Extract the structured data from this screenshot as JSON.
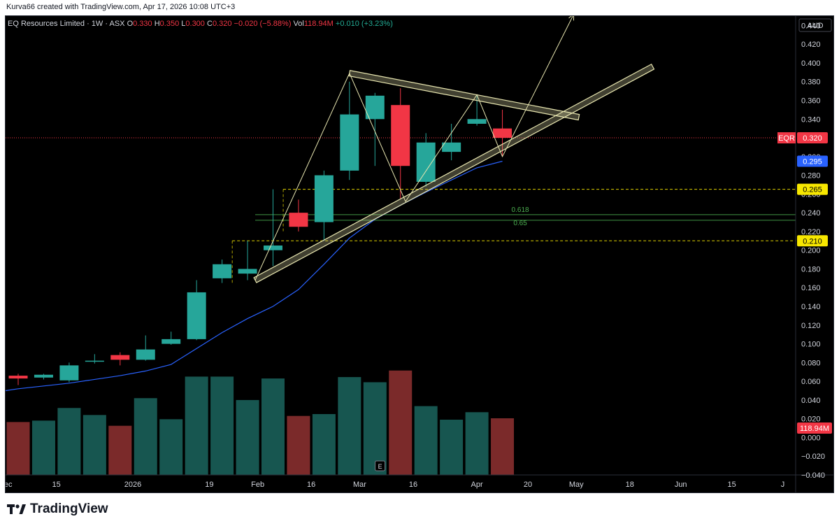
{
  "attribution": "Kurva66 created with TradingView.com, Apr 17, 2026 10:08 UTC+3",
  "legend": {
    "symbol": "EQ Resources Limited · 1W · ASX",
    "o_label": "O",
    "o": "0.330",
    "h_label": "H",
    "h": "0.350",
    "l_label": "L",
    "l": "0.300",
    "c_label": "C",
    "c": "0.320",
    "change": "−0.020 (−5.88%)",
    "vol_label": "Vol",
    "vol": "118.94M",
    "vol_change": "+0.010 (+3.23%)"
  },
  "brand": "TradingView",
  "chart_data": {
    "type": "candlestick",
    "currency": "AUD",
    "ylim": [
      -0.04,
      0.45
    ],
    "y_ticks": [
      0.44,
      0.42,
      0.4,
      0.38,
      0.36,
      0.34,
      0.32,
      0.3,
      0.28,
      0.26,
      0.24,
      0.22,
      0.2,
      0.18,
      0.16,
      0.14,
      0.12,
      0.1,
      0.08,
      0.06,
      0.04,
      0.02,
      0.0,
      -0.02,
      -0.04
    ],
    "x_ticks": [
      {
        "label": "Dec",
        "week": -0.5
      },
      {
        "label": "15",
        "week": 1.5
      },
      {
        "label": "2026",
        "week": 4.5
      },
      {
        "label": "19",
        "week": 7.5
      },
      {
        "label": "Feb",
        "week": 9.4
      },
      {
        "label": "16",
        "week": 11.5
      },
      {
        "label": "Mar",
        "week": 13.4
      },
      {
        "label": "16",
        "week": 15.5
      },
      {
        "label": "Apr",
        "week": 18.0
      },
      {
        "label": "20",
        "week": 20.0
      },
      {
        "label": "May",
        "week": 21.9
      },
      {
        "label": "18",
        "week": 24.0
      },
      {
        "label": "Jun",
        "week": 26.0
      },
      {
        "label": "15",
        "week": 28.0
      },
      {
        "label": "J",
        "week": 30.0
      }
    ],
    "candles": [
      {
        "o": 0.066,
        "h": 0.068,
        "l": 0.056,
        "c": 0.063
      },
      {
        "o": 0.064,
        "h": 0.068,
        "l": 0.062,
        "c": 0.067
      },
      {
        "o": 0.061,
        "h": 0.08,
        "l": 0.059,
        "c": 0.077
      },
      {
        "o": 0.081,
        "h": 0.089,
        "l": 0.079,
        "c": 0.082
      },
      {
        "o": 0.088,
        "h": 0.091,
        "l": 0.077,
        "c": 0.083
      },
      {
        "o": 0.083,
        "h": 0.109,
        "l": 0.082,
        "c": 0.094
      },
      {
        "o": 0.1,
        "h": 0.113,
        "l": 0.099,
        "c": 0.105
      },
      {
        "o": 0.105,
        "h": 0.168,
        "l": 0.104,
        "c": 0.155
      },
      {
        "o": 0.17,
        "h": 0.19,
        "l": 0.165,
        "c": 0.185
      },
      {
        "o": 0.175,
        "h": 0.21,
        "l": 0.168,
        "c": 0.18
      },
      {
        "o": 0.2,
        "h": 0.265,
        "l": 0.183,
        "c": 0.205
      },
      {
        "o": 0.24,
        "h": 0.254,
        "l": 0.22,
        "c": 0.225
      },
      {
        "o": 0.23,
        "h": 0.285,
        "l": 0.21,
        "c": 0.28
      },
      {
        "o": 0.285,
        "h": 0.38,
        "l": 0.275,
        "c": 0.345
      },
      {
        "o": 0.34,
        "h": 0.368,
        "l": 0.29,
        "c": 0.365
      },
      {
        "o": 0.355,
        "h": 0.373,
        "l": 0.255,
        "c": 0.29
      },
      {
        "o": 0.273,
        "h": 0.325,
        "l": 0.268,
        "c": 0.315
      },
      {
        "o": 0.305,
        "h": 0.335,
        "l": 0.296,
        "c": 0.315
      },
      {
        "o": 0.335,
        "h": 0.365,
        "l": 0.333,
        "c": 0.34
      },
      {
        "o": 0.33,
        "h": 0.35,
        "l": 0.3,
        "c": 0.32
      }
    ],
    "volumes": [
      {
        "value": 0.0165,
        "dir": "down"
      },
      {
        "value": 0.018,
        "dir": "up"
      },
      {
        "value": 0.0315,
        "dir": "up"
      },
      {
        "value": 0.024,
        "dir": "up"
      },
      {
        "value": 0.0125,
        "dir": "down"
      },
      {
        "value": 0.042,
        "dir": "up"
      },
      {
        "value": 0.0195,
        "dir": "up"
      },
      {
        "value": 0.065,
        "dir": "up"
      },
      {
        "value": 0.065,
        "dir": "up"
      },
      {
        "value": 0.04,
        "dir": "up"
      },
      {
        "value": 0.063,
        "dir": "up"
      },
      {
        "value": 0.023,
        "dir": "down"
      },
      {
        "value": 0.025,
        "dir": "up"
      },
      {
        "value": 0.0645,
        "dir": "up"
      },
      {
        "value": 0.059,
        "dir": "up"
      },
      {
        "value": 0.0715,
        "dir": "down"
      },
      {
        "value": 0.0335,
        "dir": "up"
      },
      {
        "value": 0.019,
        "dir": "up"
      },
      {
        "value": 0.027,
        "dir": "up"
      },
      {
        "value": 0.0205,
        "dir": "down"
      }
    ],
    "ma": [
      0.052,
      0.055,
      0.058,
      0.062,
      0.066,
      0.071,
      0.078,
      0.095,
      0.112,
      0.127,
      0.14,
      0.158,
      0.185,
      0.213,
      0.233,
      0.248,
      0.262,
      0.275,
      0.288,
      0.295
    ],
    "levels": {
      "last_price": {
        "label": "EQR",
        "value": 0.32,
        "color": "#f23645"
      },
      "ma_value": {
        "value": 0.295,
        "color": "#2962ff"
      },
      "resistance_1": {
        "value": 0.265,
        "color": "#f7e700"
      },
      "resistance_2": {
        "value": 0.21,
        "color": "#f7e700"
      },
      "fib_618": {
        "label": "0.618",
        "value": 0.238
      },
      "fib_65": {
        "label": "0.65",
        "value": 0.232
      },
      "volume_badge": {
        "label": "118.94M",
        "value": 0.01
      }
    },
    "drawings": {
      "wedge_upper": [
        {
          "week": 13.0,
          "price": 0.389
        },
        {
          "week": 22.0,
          "price": 0.342
        }
      ],
      "wedge_lower": [
        {
          "week": 9.3,
          "price": 0.168
        },
        {
          "week": 24.9,
          "price": 0.396
        }
      ],
      "zigzag": [
        {
          "week": 9.3,
          "price": 0.168
        },
        {
          "week": 13.0,
          "price": 0.389
        },
        {
          "week": 15.2,
          "price": 0.252
        },
        {
          "week": 18.0,
          "price": 0.366
        },
        {
          "week": 19.0,
          "price": 0.3
        },
        {
          "week": 21.8,
          "price": 0.452
        }
      ]
    },
    "colors": {
      "up": "#26a69a",
      "down": "#f23645",
      "vol_up": "#175650",
      "vol_down": "#7b2a2a",
      "ma": "#2962ff",
      "drawing": "#e8e6b0",
      "fib": "#4caf50",
      "grid": "#1a1a1a"
    },
    "event_marker": "E"
  }
}
